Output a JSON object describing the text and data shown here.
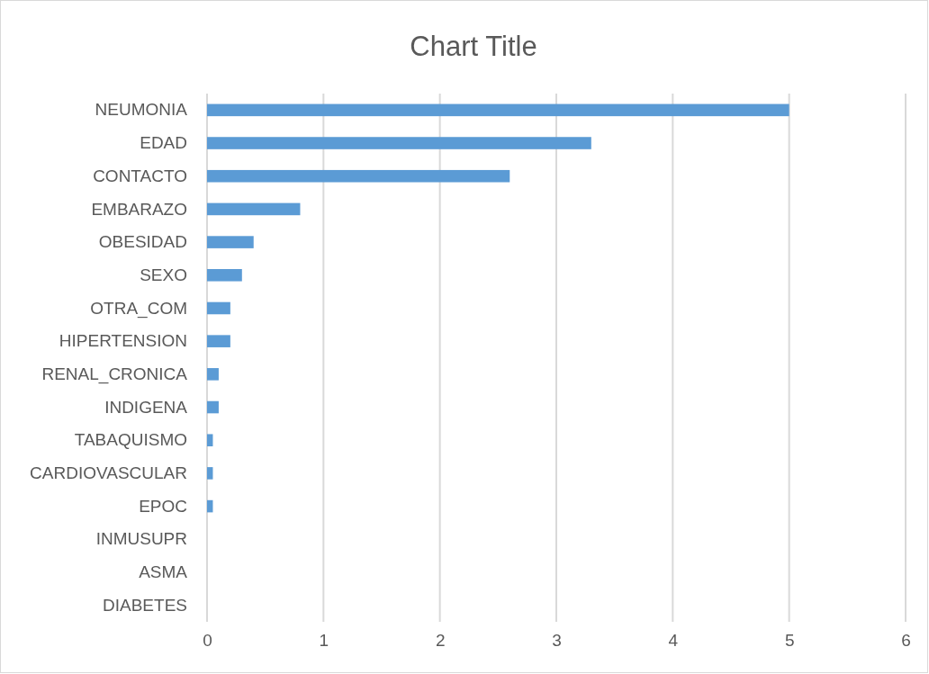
{
  "chart_data": {
    "type": "bar",
    "orientation": "horizontal",
    "title": "Chart Title",
    "categories": [
      "NEUMONIA",
      "EDAD",
      "CONTACTO",
      "EMBARAZO",
      "OBESIDAD",
      "SEXO",
      "OTRA_COM",
      "HIPERTENSION",
      "RENAL_CRONICA",
      "INDIGENA",
      "TABAQUISMO",
      "CARDIOVASCULAR",
      "EPOC",
      "INMUSUPR",
      "ASMA",
      "DIABETES"
    ],
    "values": [
      5,
      3.3,
      2.6,
      0.8,
      0.4,
      0.3,
      0.2,
      0.2,
      0.1,
      0.1,
      0.05,
      0.05,
      0.05,
      0,
      0,
      0
    ],
    "color": "#5b9bd5",
    "xlim": [
      0,
      6
    ],
    "xticks": [
      0,
      1,
      2,
      3,
      4,
      5,
      6
    ],
    "grid": "x"
  }
}
